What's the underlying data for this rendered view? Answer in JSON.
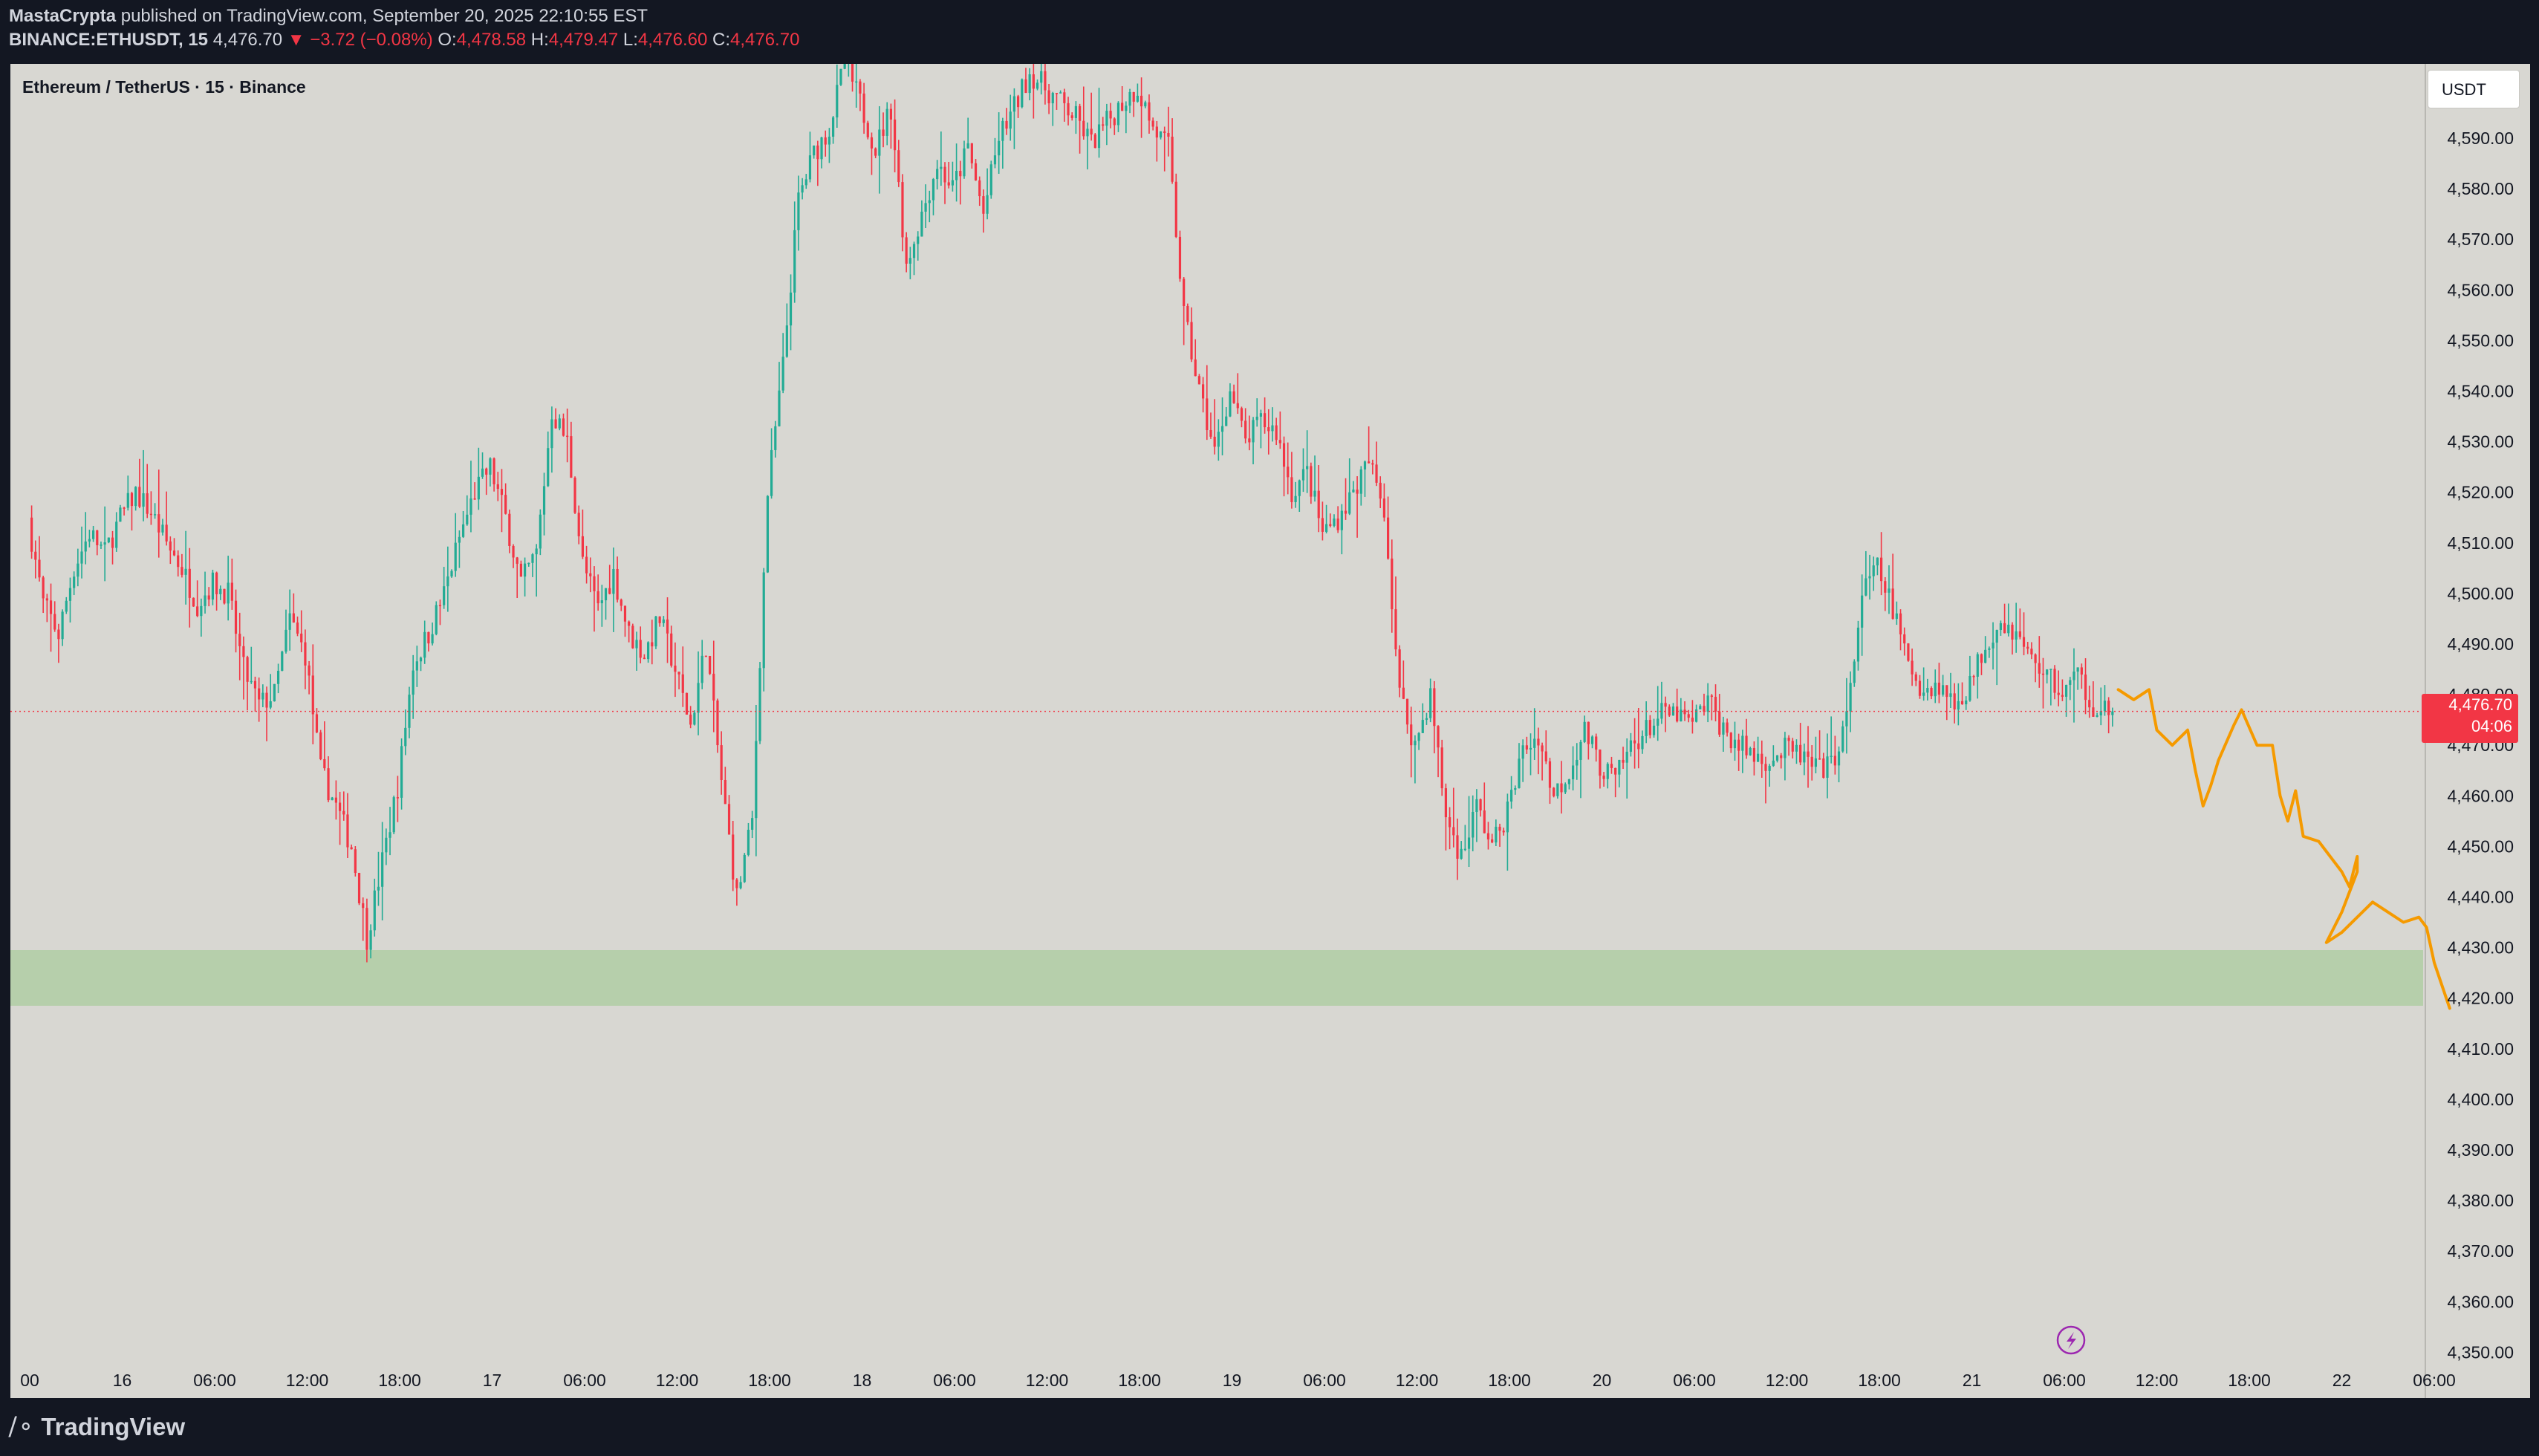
{
  "header": {
    "author": "MastaCrypta",
    "published": "published on TradingView.com, September 20, 2025 22:10:55 EST",
    "symbol": "BINANCE:ETHUSDT, 15",
    "last": "4,476.70",
    "change_arrow": "▼",
    "change": "−3.72 (−0.08%)",
    "o_label": "O:",
    "o_value": "4,478.58",
    "h_label": "H:",
    "h_value": "4,479.47",
    "l_label": "L:",
    "l_value": "4,476.60",
    "c_label": "C:",
    "c_value": "4,476.70"
  },
  "chart_title": "Ethereum / TetherUS · 15 · Binance",
  "currency_button": "USDT",
  "current_price_tag": {
    "price": "4,476.70",
    "countdown": "04:06",
    "color": "#f23645"
  },
  "footer": {
    "brand": "TradingView",
    "logo_icon": "tradingview-logo-icon"
  },
  "colors": {
    "up": "#22ab94",
    "down": "#f23645",
    "background": "#d8d7d2",
    "support_zone": "#b6cfab",
    "projection": "#f59a00",
    "frame": "#131722"
  },
  "chart_data": {
    "type": "candlestick",
    "title": "Ethereum / TetherUS · 15 · Binance",
    "interval": "15",
    "x_tick_labels": [
      "00",
      "16",
      "06:00",
      "12:00",
      "18:00",
      "17",
      "06:00",
      "12:00",
      "18:00",
      "18",
      "06:00",
      "12:00",
      "18:00",
      "19",
      "06:00",
      "12:00",
      "18:00",
      "20",
      "06:00",
      "12:00",
      "18:00",
      "21",
      "06:00",
      "12:00",
      "18:00",
      "22",
      "06:00"
    ],
    "y_tick_labels": [
      "4,590.00",
      "4,580.00",
      "4,570.00",
      "4,560.00",
      "4,550.00",
      "4,540.00",
      "4,530.00",
      "4,520.00",
      "4,510.00",
      "4,500.00",
      "4,490.00",
      "4,480.00",
      "4,470.00",
      "4,460.00",
      "4,450.00",
      "4,440.00",
      "4,430.00",
      "4,420.00",
      "4,410.00",
      "4,400.00",
      "4,390.00",
      "4,380.00",
      "4,370.00",
      "4,360.00",
      "4,350.00"
    ],
    "ylim": [
      4345.8,
      4610.0
    ],
    "x_unit": "hours since Sep 16 00:00",
    "xlim": [
      0,
      144
    ],
    "price_path": [
      [
        0,
        4515
      ],
      [
        1,
        4498
      ],
      [
        2,
        4492
      ],
      [
        3,
        4505
      ],
      [
        4,
        4512
      ],
      [
        5,
        4508
      ],
      [
        6,
        4515
      ],
      [
        7,
        4520
      ],
      [
        8,
        4516
      ],
      [
        9,
        4510
      ],
      [
        10,
        4505
      ],
      [
        11,
        4498
      ],
      [
        12,
        4502
      ],
      [
        13,
        4500
      ],
      [
        14,
        4485
      ],
      [
        15,
        4478
      ],
      [
        16,
        4480
      ],
      [
        17,
        4495
      ],
      [
        18,
        4488
      ],
      [
        19,
        4465
      ],
      [
        20,
        4458
      ],
      [
        21,
        4450
      ],
      [
        22,
        4432
      ],
      [
        23,
        4447
      ],
      [
        24,
        4462
      ],
      [
        25,
        4486
      ],
      [
        26,
        4492
      ],
      [
        27,
        4500
      ],
      [
        28,
        4511
      ],
      [
        29,
        4520
      ],
      [
        30,
        4525
      ],
      [
        31,
        4515
      ],
      [
        32,
        4502
      ],
      [
        33,
        4508
      ],
      [
        34,
        4536
      ],
      [
        35,
        4530
      ],
      [
        36,
        4506
      ],
      [
        37,
        4497
      ],
      [
        38,
        4504
      ],
      [
        39,
        4492
      ],
      [
        40,
        4488
      ],
      [
        41,
        4495
      ],
      [
        42,
        4485
      ],
      [
        43,
        4474
      ],
      [
        44,
        4490
      ],
      [
        45,
        4463
      ],
      [
        46,
        4440
      ],
      [
        47,
        4455
      ],
      [
        48,
        4520
      ],
      [
        49,
        4545
      ],
      [
        50,
        4578
      ],
      [
        51,
        4587
      ],
      [
        52,
        4592
      ],
      [
        53,
        4605
      ],
      [
        54,
        4597
      ],
      [
        55,
        4588
      ],
      [
        56,
        4596
      ],
      [
        57,
        4565
      ],
      [
        58,
        4575
      ],
      [
        59,
        4585
      ],
      [
        60,
        4580
      ],
      [
        61,
        4588
      ],
      [
        62,
        4575
      ],
      [
        63,
        4590
      ],
      [
        64,
        4596
      ],
      [
        65,
        4603
      ],
      [
        66,
        4600
      ],
      [
        67,
        4597
      ],
      [
        68,
        4594
      ],
      [
        69,
        4589
      ],
      [
        70,
        4593
      ],
      [
        71,
        4597
      ],
      [
        72,
        4600
      ],
      [
        73,
        4592
      ],
      [
        74,
        4588
      ],
      [
        75,
        4555
      ],
      [
        76,
        4540
      ],
      [
        77,
        4528
      ],
      [
        78,
        4540
      ],
      [
        79,
        4530
      ],
      [
        80,
        4534
      ],
      [
        81,
        4532
      ],
      [
        82,
        4520
      ],
      [
        83,
        4524
      ],
      [
        84,
        4512
      ],
      [
        85,
        4515
      ],
      [
        86,
        4520
      ],
      [
        87,
        4526
      ],
      [
        88,
        4517
      ],
      [
        89,
        4480
      ],
      [
        90,
        4470
      ],
      [
        91,
        4480
      ],
      [
        92,
        4456
      ],
      [
        93,
        4448
      ],
      [
        94,
        4458
      ],
      [
        95,
        4450
      ],
      [
        96,
        4457
      ],
      [
        97,
        4469
      ],
      [
        98,
        4472
      ],
      [
        99,
        4460
      ],
      [
        100,
        4465
      ],
      [
        101,
        4473
      ],
      [
        102,
        4466
      ],
      [
        103,
        4463
      ],
      [
        104,
        4470
      ],
      [
        105,
        4473
      ],
      [
        106,
        4476
      ],
      [
        107,
        4476
      ],
      [
        108,
        4474
      ],
      [
        109,
        4479
      ],
      [
        110,
        4473
      ],
      [
        111,
        4470
      ],
      [
        112,
        4468
      ],
      [
        113,
        4467
      ],
      [
        114,
        4469
      ],
      [
        115,
        4468
      ],
      [
        116,
        4465
      ],
      [
        117,
        4466
      ],
      [
        118,
        4475
      ],
      [
        119,
        4500
      ],
      [
        120,
        4505
      ],
      [
        121,
        4497
      ],
      [
        122,
        4486
      ],
      [
        123,
        4481
      ],
      [
        124,
        4482
      ],
      [
        125,
        4478
      ],
      [
        126,
        4482
      ],
      [
        127,
        4490
      ],
      [
        128,
        4495
      ],
      [
        129,
        4492
      ],
      [
        130,
        4487
      ],
      [
        131,
        4484
      ],
      [
        132,
        4480
      ],
      [
        133,
        4484
      ],
      [
        134,
        4478
      ],
      [
        135,
        4477
      ]
    ],
    "last_price": 4476.7,
    "support_zone": {
      "from": 4418.5,
      "to": 4429.5
    },
    "projection_path": [
      [
        135.5,
        4481
      ],
      [
        136.5,
        4479
      ],
      [
        137.5,
        4481
      ],
      [
        138,
        4473
      ],
      [
        139,
        4470
      ],
      [
        140,
        4473
      ],
      [
        140.5,
        4465
      ],
      [
        141,
        4458
      ],
      [
        141.5,
        4462
      ],
      [
        142,
        4467
      ],
      [
        143,
        4474
      ],
      [
        143.5,
        4477
      ],
      [
        144.5,
        4470
      ],
      [
        145.5,
        4470
      ],
      [
        146,
        4460
      ],
      [
        146.5,
        4455
      ],
      [
        147,
        4461
      ],
      [
        147.5,
        4452
      ],
      [
        148.5,
        4451
      ],
      [
        149.5,
        4447
      ],
      [
        150,
        4445
      ],
      [
        150.5,
        4442
      ],
      [
        151,
        4448
      ],
      [
        151,
        4445
      ],
      [
        150,
        4437
      ],
      [
        149,
        4431
      ],
      [
        150,
        4433
      ],
      [
        151,
        4436
      ],
      [
        152,
        4439
      ],
      [
        153,
        4437
      ],
      [
        154,
        4435
      ],
      [
        155,
        4436
      ],
      [
        155.5,
        4434
      ],
      [
        156,
        4427
      ],
      [
        157,
        4418
      ]
    ]
  }
}
